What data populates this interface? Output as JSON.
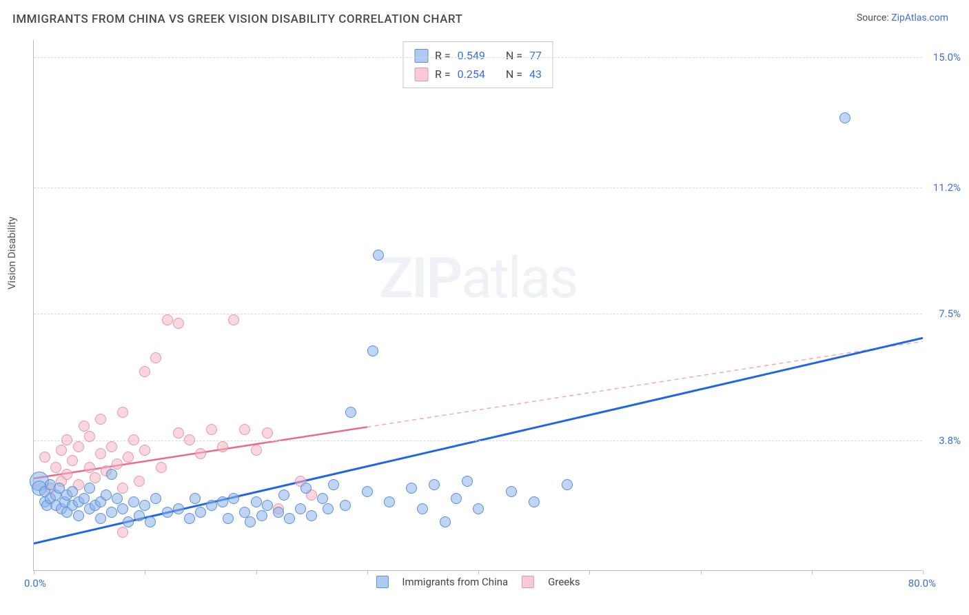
{
  "header": {
    "title": "IMMIGRANTS FROM CHINA VS GREEK VISION DISABILITY CORRELATION CHART",
    "source_prefix": "Source: ",
    "source_name": "ZipAtlas.com"
  },
  "watermark": {
    "zip": "ZIP",
    "atlas": "atlas"
  },
  "chart": {
    "type": "scatter",
    "background_color": "#ffffff",
    "grid_color": "#d8d8d8",
    "axis_color": "#bbbbbb",
    "y_axis_label": "Vision Disability",
    "y_axis_label_fontsize": 15,
    "x_lim": [
      0,
      80
    ],
    "y_lim": [
      0,
      15.5
    ],
    "x_ticks": [
      0,
      10,
      20,
      30,
      40,
      50,
      60,
      70,
      80
    ],
    "x_tick_labels": {
      "left": "0.0%",
      "right": "80.0%"
    },
    "y_ticks": [
      {
        "value": 3.8,
        "label": "3.8%"
      },
      {
        "value": 7.5,
        "label": "7.5%"
      },
      {
        "value": 11.2,
        "label": "11.2%"
      },
      {
        "value": 15.0,
        "label": "15.0%"
      }
    ],
    "tick_label_color": "#3b6fd6",
    "legend_top": {
      "series_a": {
        "r_label": "R =",
        "r_value": "0.549",
        "n_label": "N =",
        "n_value": "77"
      },
      "series_b": {
        "r_label": "R =",
        "r_value": "0.254",
        "n_label": "N =",
        "n_value": "43"
      }
    },
    "legend_bottom": {
      "series_a_label": "Immigrants from China",
      "series_b_label": "Greeks"
    },
    "series_a": {
      "name": "Immigrants from China",
      "color_fill": "rgba(141,179,233,0.55)",
      "color_stroke": "#5a8fd6",
      "marker_size_default": 16,
      "trend": {
        "x1": 0,
        "y1": 0.8,
        "x2": 80,
        "y2": 6.8,
        "color": "#1f66e5",
        "width": 3,
        "dash": "none"
      },
      "points": [
        {
          "x": 0.5,
          "y": 2.6,
          "r": 28
        },
        {
          "x": 0.5,
          "y": 2.4,
          "r": 22
        },
        {
          "x": 1,
          "y": 2.0
        },
        {
          "x": 1,
          "y": 2.3
        },
        {
          "x": 1.2,
          "y": 1.9
        },
        {
          "x": 1.5,
          "y": 2.1
        },
        {
          "x": 1.5,
          "y": 2.5
        },
        {
          "x": 2,
          "y": 2.2
        },
        {
          "x": 2,
          "y": 1.9
        },
        {
          "x": 2.3,
          "y": 2.4
        },
        {
          "x": 2.5,
          "y": 1.8
        },
        {
          "x": 2.8,
          "y": 2.0
        },
        {
          "x": 3,
          "y": 2.2
        },
        {
          "x": 3,
          "y": 1.7
        },
        {
          "x": 3.5,
          "y": 1.9
        },
        {
          "x": 3.5,
          "y": 2.3
        },
        {
          "x": 4,
          "y": 2.0
        },
        {
          "x": 4,
          "y": 1.6
        },
        {
          "x": 4.5,
          "y": 2.1
        },
        {
          "x": 5,
          "y": 1.8
        },
        {
          "x": 5,
          "y": 2.4
        },
        {
          "x": 5.5,
          "y": 1.9
        },
        {
          "x": 6,
          "y": 2.0
        },
        {
          "x": 6,
          "y": 1.5
        },
        {
          "x": 6.5,
          "y": 2.2
        },
        {
          "x": 7,
          "y": 1.7
        },
        {
          "x": 7.5,
          "y": 2.1
        },
        {
          "x": 8,
          "y": 1.8
        },
        {
          "x": 8.5,
          "y": 1.4
        },
        {
          "x": 9,
          "y": 2.0
        },
        {
          "x": 9.5,
          "y": 1.6
        },
        {
          "x": 10,
          "y": 1.9
        },
        {
          "x": 10.5,
          "y": 1.4
        },
        {
          "x": 11,
          "y": 2.1
        },
        {
          "x": 12,
          "y": 1.7
        },
        {
          "x": 13,
          "y": 1.8
        },
        {
          "x": 14,
          "y": 1.5
        },
        {
          "x": 14.5,
          "y": 2.1
        },
        {
          "x": 15,
          "y": 1.7
        },
        {
          "x": 16,
          "y": 1.9
        },
        {
          "x": 17,
          "y": 2.0
        },
        {
          "x": 17.5,
          "y": 1.5
        },
        {
          "x": 18,
          "y": 2.1
        },
        {
          "x": 19,
          "y": 1.7
        },
        {
          "x": 19.5,
          "y": 1.4
        },
        {
          "x": 20,
          "y": 2.0
        },
        {
          "x": 20.5,
          "y": 1.6
        },
        {
          "x": 21,
          "y": 1.9
        },
        {
          "x": 22,
          "y": 1.7
        },
        {
          "x": 22.5,
          "y": 2.2
        },
        {
          "x": 23,
          "y": 1.5
        },
        {
          "x": 24,
          "y": 1.8
        },
        {
          "x": 24.5,
          "y": 2.4
        },
        {
          "x": 25,
          "y": 1.6
        },
        {
          "x": 26,
          "y": 2.1
        },
        {
          "x": 26.5,
          "y": 1.8
        },
        {
          "x": 27,
          "y": 2.5
        },
        {
          "x": 28,
          "y": 1.9
        },
        {
          "x": 28.5,
          "y": 4.6
        },
        {
          "x": 30,
          "y": 2.3
        },
        {
          "x": 30.5,
          "y": 6.4
        },
        {
          "x": 31,
          "y": 9.2
        },
        {
          "x": 32,
          "y": 2.0
        },
        {
          "x": 34,
          "y": 2.4
        },
        {
          "x": 35,
          "y": 1.8
        },
        {
          "x": 36,
          "y": 2.5
        },
        {
          "x": 37,
          "y": 1.4
        },
        {
          "x": 38,
          "y": 2.1
        },
        {
          "x": 39,
          "y": 2.6
        },
        {
          "x": 40,
          "y": 1.8
        },
        {
          "x": 43,
          "y": 2.3
        },
        {
          "x": 45,
          "y": 2.0
        },
        {
          "x": 48,
          "y": 2.5
        },
        {
          "x": 73,
          "y": 13.2
        },
        {
          "x": 7,
          "y": 2.8
        }
      ]
    },
    "series_b": {
      "name": "Greeks",
      "color_fill": "rgba(245,180,195,0.55)",
      "color_stroke": "#e497ab",
      "marker_size_default": 16,
      "trend_solid": {
        "x1": 0,
        "y1": 2.7,
        "x2": 30,
        "y2": 4.2,
        "color": "#e76b8a",
        "width": 2.5,
        "dash": "none"
      },
      "trend_dashed": {
        "x1": 30,
        "y1": 4.2,
        "x2": 80,
        "y2": 6.7,
        "color": "#f0a9b8",
        "width": 1.5,
        "dash": "6,5"
      },
      "points": [
        {
          "x": 1,
          "y": 3.3
        },
        {
          "x": 1.5,
          "y": 2.4
        },
        {
          "x": 2,
          "y": 3.0
        },
        {
          "x": 2.5,
          "y": 3.5
        },
        {
          "x": 2.5,
          "y": 2.6
        },
        {
          "x": 3,
          "y": 3.8
        },
        {
          "x": 3,
          "y": 2.8
        },
        {
          "x": 3.5,
          "y": 3.2
        },
        {
          "x": 4,
          "y": 3.6
        },
        {
          "x": 4,
          "y": 2.5
        },
        {
          "x": 4.5,
          "y": 4.2
        },
        {
          "x": 5,
          "y": 3.0
        },
        {
          "x": 5,
          "y": 3.9
        },
        {
          "x": 5.5,
          "y": 2.7
        },
        {
          "x": 6,
          "y": 3.4
        },
        {
          "x": 6,
          "y": 4.4
        },
        {
          "x": 6.5,
          "y": 2.9
        },
        {
          "x": 7,
          "y": 3.6
        },
        {
          "x": 7.5,
          "y": 3.1
        },
        {
          "x": 8,
          "y": 2.4
        },
        {
          "x": 8,
          "y": 4.6
        },
        {
          "x": 8.5,
          "y": 3.3
        },
        {
          "x": 9,
          "y": 3.8
        },
        {
          "x": 9.5,
          "y": 2.6
        },
        {
          "x": 10,
          "y": 5.8
        },
        {
          "x": 10,
          "y": 3.5
        },
        {
          "x": 11,
          "y": 6.2
        },
        {
          "x": 11.5,
          "y": 3.0
        },
        {
          "x": 12,
          "y": 7.3
        },
        {
          "x": 13,
          "y": 7.2
        },
        {
          "x": 13,
          "y": 4.0
        },
        {
          "x": 14,
          "y": 3.8
        },
        {
          "x": 15,
          "y": 3.4
        },
        {
          "x": 16,
          "y": 4.1
        },
        {
          "x": 17,
          "y": 3.6
        },
        {
          "x": 18,
          "y": 7.3
        },
        {
          "x": 19,
          "y": 4.1
        },
        {
          "x": 20,
          "y": 3.5
        },
        {
          "x": 21,
          "y": 4.0
        },
        {
          "x": 22,
          "y": 1.8
        },
        {
          "x": 24,
          "y": 2.6
        },
        {
          "x": 25,
          "y": 2.2
        },
        {
          "x": 8,
          "y": 1.1
        }
      ]
    }
  }
}
